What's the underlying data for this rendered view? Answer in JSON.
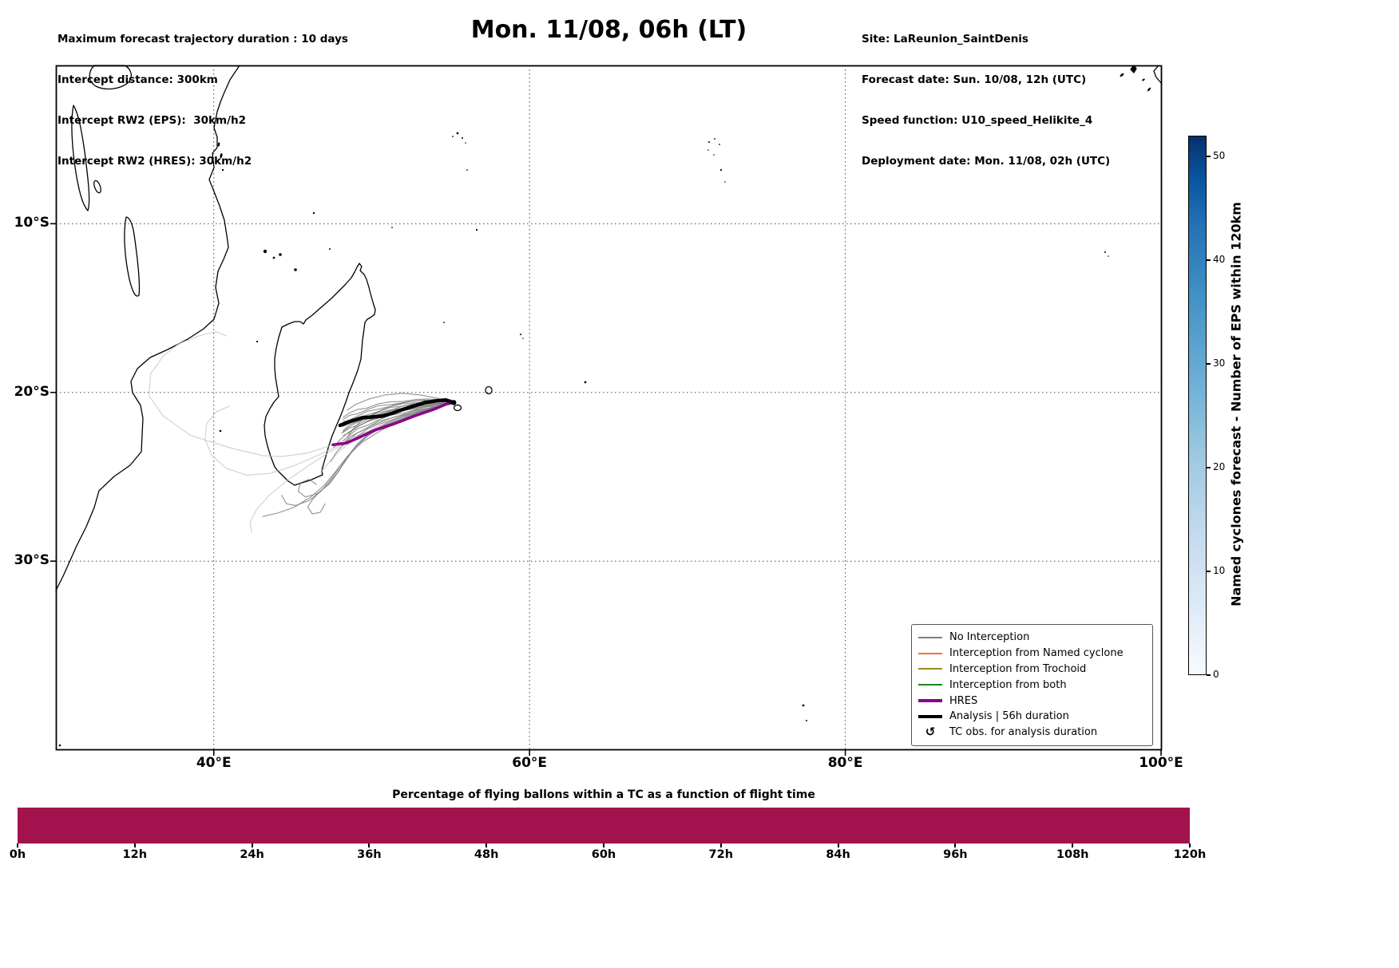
{
  "header": {
    "top_left_lines": [
      "Maximum forecast trajectory duration : 10 days",
      "Intercept distance: 300km",
      "Intercept RW2 (EPS):  30km/h2",
      "Intercept RW2 (HRES): 30km/h2"
    ],
    "title": "Mon. 11/08, 06h (LT)",
    "top_right_lines": [
      "Site: LaReunion_SaintDenis",
      "Forecast date: Sun. 10/08, 12h (UTC)",
      "Speed function: U10_speed_Helikite_4",
      "Deployment date: Mon. 11/08, 02h (UTC)"
    ]
  },
  "legend": {
    "items": [
      {
        "label": "No Interception",
        "color": "#7f7f7f",
        "style": "thin"
      },
      {
        "label": "Interception from Named cyclone",
        "color": "#ff6d33",
        "style": "thin"
      },
      {
        "label": "Interception from Trochoid",
        "color": "#9d8c1f",
        "style": "thin"
      },
      {
        "label": "Interception from both",
        "color": "#1a8a1a",
        "style": "thin"
      },
      {
        "label": "HRES",
        "color": "#8b008b",
        "style": "thick"
      },
      {
        "label": "Analysis | 56h duration",
        "color": "#000000",
        "style": "thick"
      },
      {
        "label": "TC obs. for analysis duration",
        "icon": "↺",
        "style": "icon"
      }
    ]
  },
  "colorbar": {
    "label": "Named cyclones forecast - Number of EPS within 120km",
    "tick_values": [
      0,
      10,
      20,
      30,
      40,
      50
    ],
    "range": [
      0,
      52
    ],
    "colormap": "Blues",
    "min_color": "#f7fbff",
    "max_color": "#08306b"
  },
  "chart_data": [
    {
      "type": "line",
      "title": "Mon. 11/08, 06h (LT)",
      "description": "Balloon forecast trajectories around Madagascar / La Reunion; EPS ensemble in gray, HRES in purple, analysis in black, launched near La Reunion.",
      "x_axis": {
        "label": "Longitude",
        "tick_labels": [
          "40°E",
          "60°E",
          "80°E",
          "100°E"
        ],
        "tick_values": [
          40,
          60,
          80,
          100
        ],
        "range": [
          30,
          100.05
        ]
      },
      "y_axis": {
        "label": "Latitude",
        "tick_labels": [
          "10°S",
          "20°S",
          "30°S"
        ],
        "tick_values": [
          -10,
          -20,
          -30
        ],
        "range": [
          -41.2,
          -0.62
        ]
      },
      "grid": true,
      "legend_position": "lower right",
      "deployment_point": [
        55.2,
        -20.6
      ],
      "series": [
        {
          "name": "Analysis | 56h duration",
          "color": "#000000",
          "width": 4.5,
          "points": [
            [
              55.2,
              -20.6
            ],
            [
              54.7,
              -20.45
            ],
            [
              54.1,
              -20.5
            ],
            [
              53.4,
              -20.6
            ],
            [
              52.7,
              -20.8
            ],
            [
              52.0,
              -21.0
            ],
            [
              51.4,
              -21.2
            ],
            [
              50.7,
              -21.4
            ],
            [
              50.1,
              -21.45
            ],
            [
              49.4,
              -21.5
            ],
            [
              48.7,
              -21.7
            ],
            [
              48.0,
              -21.95
            ]
          ]
        },
        {
          "name": "HRES",
          "color": "#8b008b",
          "width": 3.5,
          "points": [
            [
              55.2,
              -20.6
            ],
            [
              54.7,
              -20.7
            ],
            [
              53.95,
              -21.0
            ],
            [
              52.7,
              -21.4
            ],
            [
              51.45,
              -21.85
            ],
            [
              50.15,
              -22.25
            ],
            [
              49.15,
              -22.7
            ],
            [
              48.4,
              -23.0
            ],
            [
              47.55,
              -23.1
            ]
          ]
        }
      ],
      "ensemble_tracks": [
        [
          [
            55.2,
            -20.6
          ],
          [
            54.2,
            -20.35
          ],
          [
            53.1,
            -20.15
          ],
          [
            51.95,
            -20.05
          ],
          [
            50.85,
            -20.15
          ],
          [
            49.8,
            -20.4
          ],
          [
            49.0,
            -20.7
          ],
          [
            48.45,
            -21.05
          ]
        ],
        [
          [
            55.2,
            -20.6
          ],
          [
            54.1,
            -20.65
          ],
          [
            52.9,
            -20.8
          ],
          [
            51.7,
            -21.0
          ],
          [
            50.55,
            -21.25
          ],
          [
            49.5,
            -21.6
          ],
          [
            48.7,
            -21.95
          ],
          [
            48.1,
            -22.4
          ]
        ],
        [
          [
            55.2,
            -20.6
          ],
          [
            53.95,
            -20.85
          ],
          [
            52.6,
            -21.15
          ],
          [
            51.3,
            -21.5
          ],
          [
            50.05,
            -21.95
          ],
          [
            49.1,
            -22.4
          ],
          [
            48.35,
            -22.95
          ],
          [
            47.8,
            -23.5
          ],
          [
            47.4,
            -24.1
          ]
        ],
        [
          [
            55.2,
            -20.6
          ],
          [
            53.7,
            -21.0
          ],
          [
            52.2,
            -21.45
          ],
          [
            50.85,
            -21.95
          ],
          [
            49.7,
            -22.6
          ],
          [
            48.85,
            -23.35
          ],
          [
            48.15,
            -24.2
          ],
          [
            47.5,
            -25.05
          ],
          [
            46.8,
            -25.85
          ],
          [
            46.05,
            -26.4
          ],
          [
            45.2,
            -26.7
          ],
          [
            44.6,
            -26.6
          ],
          [
            44.3,
            -26.1
          ]
        ],
        [
          [
            55.2,
            -20.6
          ],
          [
            53.8,
            -20.9
          ],
          [
            52.4,
            -21.3
          ],
          [
            51.1,
            -21.75
          ],
          [
            49.95,
            -22.35
          ],
          [
            49.1,
            -23.05
          ],
          [
            48.45,
            -23.85
          ],
          [
            47.9,
            -24.7
          ],
          [
            47.3,
            -25.45
          ],
          [
            46.55,
            -26.0
          ],
          [
            45.8,
            -26.2
          ],
          [
            45.35,
            -25.85
          ],
          [
            45.5,
            -25.35
          ],
          [
            46.05,
            -25.15
          ],
          [
            46.5,
            -25.45
          ]
        ],
        [
          [
            55.2,
            -20.6
          ],
          [
            53.6,
            -21.1
          ],
          [
            52.0,
            -21.6
          ],
          [
            50.6,
            -22.25
          ],
          [
            49.4,
            -22.95
          ],
          [
            48.5,
            -23.75
          ],
          [
            47.75,
            -24.65
          ],
          [
            47.0,
            -25.5
          ],
          [
            46.15,
            -26.2
          ],
          [
            45.1,
            -26.8
          ],
          [
            44.05,
            -27.15
          ],
          [
            43.1,
            -27.35
          ]
        ],
        [
          [
            55.2,
            -20.6
          ],
          [
            53.9,
            -20.75
          ],
          [
            52.55,
            -20.95
          ],
          [
            51.3,
            -21.25
          ],
          [
            50.15,
            -21.55
          ],
          [
            49.25,
            -21.95
          ],
          [
            48.55,
            -22.35
          ],
          [
            48.0,
            -22.8
          ],
          [
            47.6,
            -23.25
          ]
        ],
        [
          [
            55.2,
            -20.6
          ],
          [
            54.3,
            -20.5
          ],
          [
            53.3,
            -20.45
          ],
          [
            52.3,
            -20.55
          ],
          [
            51.4,
            -20.75
          ],
          [
            50.6,
            -21.05
          ],
          [
            49.85,
            -21.4
          ],
          [
            49.25,
            -21.75
          ],
          [
            48.8,
            -22.2
          ],
          [
            48.45,
            -22.65
          ]
        ],
        [
          [
            55.2,
            -20.6
          ],
          [
            54.15,
            -20.55
          ],
          [
            53.05,
            -20.6
          ],
          [
            52.0,
            -20.8
          ],
          [
            51.05,
            -21.1
          ],
          [
            50.2,
            -21.45
          ],
          [
            49.55,
            -21.8
          ]
        ],
        [
          [
            55.2,
            -20.6
          ],
          [
            53.75,
            -20.95
          ],
          [
            52.3,
            -21.4
          ],
          [
            51.0,
            -21.9
          ],
          [
            49.85,
            -22.5
          ],
          [
            49.0,
            -23.2
          ],
          [
            48.35,
            -24.05
          ],
          [
            47.8,
            -24.8
          ],
          [
            47.25,
            -25.45
          ],
          [
            46.7,
            -25.9
          ],
          [
            46.25,
            -26.35
          ],
          [
            45.95,
            -26.8
          ],
          [
            46.25,
            -27.2
          ],
          [
            46.75,
            -27.1
          ],
          [
            47.05,
            -26.6
          ]
        ]
      ],
      "ensemble_faded_tracks": [
        [
          [
            55.2,
            -20.6
          ],
          [
            53.2,
            -21.15
          ],
          [
            51.2,
            -21.8
          ],
          [
            49.25,
            -22.5
          ],
          [
            47.55,
            -23.1
          ],
          [
            45.9,
            -23.6
          ],
          [
            44.3,
            -23.8
          ],
          [
            43.1,
            -23.75
          ],
          [
            41.1,
            -23.3
          ],
          [
            38.55,
            -22.55
          ],
          [
            36.8,
            -21.4
          ],
          [
            35.9,
            -20.2
          ],
          [
            36.0,
            -18.9
          ],
          [
            36.8,
            -17.85
          ],
          [
            37.8,
            -17.1
          ],
          [
            39.05,
            -16.65
          ],
          [
            40.15,
            -16.4
          ],
          [
            40.8,
            -16.65
          ]
        ],
        [
          [
            55.2,
            -20.6
          ],
          [
            52.95,
            -21.3
          ],
          [
            50.7,
            -22.0
          ],
          [
            48.65,
            -22.8
          ],
          [
            46.9,
            -23.6
          ],
          [
            45.2,
            -24.3
          ],
          [
            43.6,
            -24.8
          ],
          [
            42.1,
            -24.9
          ],
          [
            40.8,
            -24.5
          ],
          [
            39.9,
            -23.75
          ],
          [
            39.45,
            -22.8
          ],
          [
            39.55,
            -21.85
          ],
          [
            40.15,
            -21.15
          ],
          [
            41.0,
            -20.8
          ]
        ],
        [
          [
            55.2,
            -20.6
          ],
          [
            53.1,
            -21.2
          ],
          [
            51.0,
            -21.85
          ],
          [
            49.05,
            -22.65
          ],
          [
            47.4,
            -23.5
          ],
          [
            45.9,
            -24.4
          ],
          [
            44.6,
            -25.25
          ],
          [
            43.5,
            -26.1
          ],
          [
            42.7,
            -26.95
          ],
          [
            42.3,
            -27.7
          ],
          [
            42.4,
            -28.3
          ]
        ],
        [
          [
            55.2,
            -20.6
          ],
          [
            53.45,
            -21.05
          ],
          [
            51.7,
            -21.5
          ],
          [
            50.15,
            -22.1
          ],
          [
            48.95,
            -22.75
          ],
          [
            48.05,
            -23.4
          ],
          [
            47.35,
            -24.1
          ],
          [
            46.85,
            -24.65
          ]
        ]
      ],
      "ensemble_corridor": {
        "base": [
          [
            55.2,
            -20.6
          ],
          [
            54.4,
            -20.65
          ],
          [
            53.6,
            -20.7
          ],
          [
            52.8,
            -20.8
          ],
          [
            52.0,
            -20.95
          ],
          [
            51.2,
            -21.1
          ],
          [
            50.4,
            -21.3
          ],
          [
            49.7,
            -21.55
          ],
          [
            49.1,
            -21.8
          ],
          [
            48.6,
            -22.05
          ],
          [
            48.2,
            -22.3
          ]
        ],
        "count": 10,
        "spread": 1.5,
        "color": "#7f7f7f"
      }
    },
    {
      "type": "bar",
      "title": "Percentage of flying ballons within a TC as a function of flight time",
      "x_tick_labels": [
        "0h",
        "12h",
        "24h",
        "36h",
        "48h",
        "60h",
        "72h",
        "84h",
        "96h",
        "108h",
        "120h"
      ],
      "x_range_hours": [
        0,
        120
      ],
      "values": [
        {
          "from_h": 0,
          "to_h": 120,
          "percent": 100
        }
      ],
      "bar_color": "#a2134e"
    }
  ]
}
